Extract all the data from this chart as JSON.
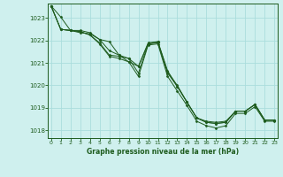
{
  "background_color": "#cff0ee",
  "grid_color": "#aadddd",
  "line_color": "#1e5c1e",
  "marker_color": "#1e5c1e",
  "xlabel": "Graphe pression niveau de la mer (hPa)",
  "xlabel_color": "#1e5c1e",
  "yticks": [
    1018,
    1019,
    1020,
    1021,
    1022,
    1023
  ],
  "xticks": [
    0,
    1,
    2,
    3,
    4,
    5,
    6,
    7,
    8,
    9,
    10,
    11,
    12,
    13,
    14,
    15,
    16,
    17,
    18,
    19,
    20,
    21,
    22,
    23
  ],
  "ylim": [
    1017.65,
    1023.65
  ],
  "xlim": [
    -0.3,
    23.3
  ],
  "series": [
    [
      1023.55,
      1023.05,
      1022.45,
      1022.35,
      1022.3,
      1022.05,
      1021.95,
      1021.35,
      1021.05,
      1020.85,
      1021.85,
      1021.95,
      1020.65,
      1019.95,
      1019.25,
      1018.55,
      1018.35,
      1018.3,
      1018.35,
      1018.85,
      1018.85,
      1019.15,
      1018.45,
      1018.45
    ],
    [
      1023.55,
      1022.5,
      1022.45,
      1022.4,
      1022.25,
      1021.9,
      1021.35,
      1021.3,
      1021.2,
      1020.55,
      1021.85,
      1021.9,
      1020.55,
      1019.95,
      1019.25,
      1018.55,
      1018.35,
      1018.3,
      1018.35,
      1018.85,
      1018.85,
      1019.15,
      1018.45,
      1018.45
    ],
    [
      1023.55,
      1022.5,
      1022.45,
      1022.4,
      1022.25,
      1021.85,
      1021.3,
      1021.2,
      1021.05,
      1020.4,
      1021.8,
      1021.85,
      1020.4,
      1019.75,
      1019.1,
      1018.4,
      1018.2,
      1018.1,
      1018.2,
      1018.75,
      1018.75,
      1019.05,
      1018.4,
      1018.4
    ],
    [
      1023.55,
      1022.5,
      1022.45,
      1022.45,
      1022.35,
      1022.05,
      1021.55,
      1021.35,
      1021.2,
      1020.85,
      1021.9,
      1021.95,
      1020.6,
      1020.0,
      1019.25,
      1018.55,
      1018.4,
      1018.35,
      1018.4,
      1018.85,
      1018.85,
      1019.15,
      1018.45,
      1018.45
    ]
  ]
}
